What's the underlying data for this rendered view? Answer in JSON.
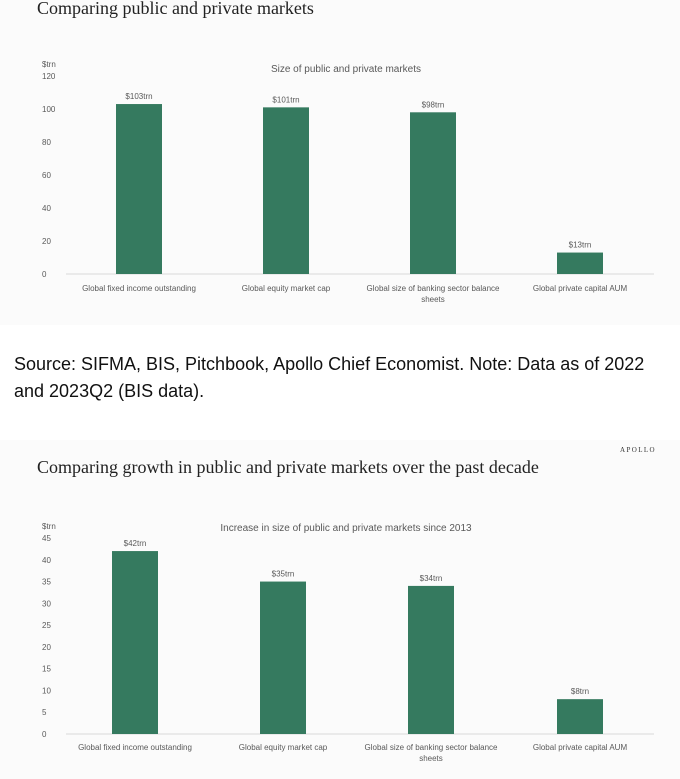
{
  "slide1": {
    "heading": "Comparing public and private markets"
  },
  "source_note": "Source: SIFMA, BIS, Pitchbook, Apollo Chief Economist. Note: Data as of 2022 and 2023Q2 (BIS data).",
  "slide2": {
    "heading": "Comparing growth in public and private markets over the past decade",
    "brand": "APOLLO"
  },
  "colors": {
    "bar": "#357a5f",
    "axis": "#d9d9d9",
    "text": "#595959",
    "heading": "#222222"
  },
  "chart_data": [
    {
      "type": "bar",
      "title": "Size of public and private markets",
      "ylabel": "$trn",
      "ylim": [
        0,
        120
      ],
      "yticks": [
        0,
        20,
        40,
        60,
        80,
        100,
        120
      ],
      "categories": [
        [
          "Global fixed income outstanding"
        ],
        [
          "Global equity market cap"
        ],
        [
          "Global size of banking sector balance",
          "sheets"
        ],
        [
          "Global private capital AUM"
        ]
      ],
      "values": [
        103,
        101,
        98,
        13
      ],
      "data_labels": [
        "$103trn",
        "$101trn",
        "$98trn",
        "$13trn"
      ],
      "grid": false
    },
    {
      "type": "bar",
      "title": "Increase in size of public and private markets since 2013",
      "ylabel": "$trn",
      "ylim": [
        0,
        45
      ],
      "yticks": [
        0,
        5,
        10,
        15,
        20,
        25,
        30,
        35,
        40,
        45
      ],
      "categories": [
        [
          "Global fixed income outstanding"
        ],
        [
          "Global equity market cap"
        ],
        [
          "Global size of banking sector balance",
          "sheets"
        ],
        [
          "Global private capital AUM"
        ]
      ],
      "values": [
        42,
        35,
        34,
        8
      ],
      "data_labels": [
        "$42trn",
        "$35trn",
        "$34trn",
        "$8trn"
      ],
      "grid": false
    }
  ]
}
